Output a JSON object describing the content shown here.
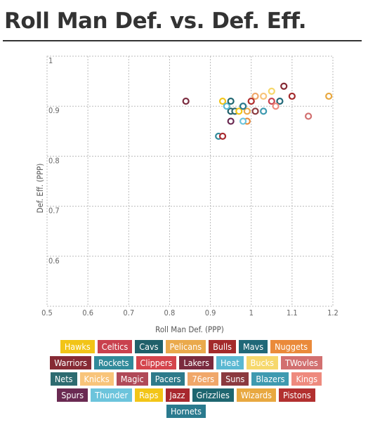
{
  "title": "Roll Man Def. vs. Def. Eff.",
  "chart_data": {
    "type": "scatter",
    "xlabel": "Roll Man Def. (PPP)",
    "ylabel": "Def. Eff. (PPP)",
    "xlim": [
      0.5,
      1.2
    ],
    "ylim": [
      0.5,
      1.0
    ],
    "xticks": [
      "0.5",
      "0.6",
      "0.7",
      "0.8",
      "0.9",
      "1",
      "1.1",
      "1.2"
    ],
    "yticks": [
      "0.6",
      "0.7",
      "0.8",
      "0.9",
      "1"
    ],
    "grid": true,
    "legend_position": "bottom",
    "series": [
      {
        "name": "Hawks",
        "color": "#f2c417",
        "x": 0.93,
        "y": 0.91
      },
      {
        "name": "Celtics",
        "color": "#c9414e",
        "x": 1.05,
        "y": 0.91
      },
      {
        "name": "Cavs",
        "color": "#20606a",
        "x": 0.95,
        "y": 0.89
      },
      {
        "name": "Pelicans",
        "color": "#eaa94c",
        "x": 0.99,
        "y": 0.89
      },
      {
        "name": "Bulls",
        "color": "#a32a2b",
        "x": 1.1,
        "y": 0.92
      },
      {
        "name": "Mavs",
        "color": "#206878",
        "x": 1.07,
        "y": 0.91
      },
      {
        "name": "Nuggets",
        "color": "#ea8a3a",
        "x": 0.99,
        "y": 0.87
      },
      {
        "name": "Warriors",
        "color": "#862a34",
        "x": 1.08,
        "y": 0.94
      },
      {
        "name": "Rockets",
        "color": "#318a9a",
        "x": 0.92,
        "y": 0.84
      },
      {
        "name": "Clippers",
        "color": "#d4444c",
        "x": 0.96,
        "y": 0.89
      },
      {
        "name": "Lakers",
        "color": "#7a2a3e",
        "x": 0.84,
        "y": 0.91
      },
      {
        "name": "Heat",
        "color": "#5ab8d2",
        "x": 0.94,
        "y": 0.9
      },
      {
        "name": "Bucks",
        "color": "#f6d86c",
        "x": 1.05,
        "y": 0.93
      },
      {
        "name": "TWovles",
        "color": "#d27070",
        "x": 1.14,
        "y": 0.88
      },
      {
        "name": "Nets",
        "color": "#2e6b70",
        "x": 0.96,
        "y": 0.89
      },
      {
        "name": "Knicks",
        "color": "#f8c47a",
        "x": 1.03,
        "y": 0.92
      },
      {
        "name": "Magic",
        "color": "#b04a58",
        "x": 1.0,
        "y": 0.91
      },
      {
        "name": "Pacers",
        "color": "#2e7a8a",
        "x": 0.98,
        "y": 0.9
      },
      {
        "name": "76ers",
        "color": "#f0a76a",
        "x": 1.01,
        "y": 0.92
      },
      {
        "name": "Suns",
        "color": "#8b3a3f",
        "x": 1.01,
        "y": 0.89
      },
      {
        "name": "Blazers",
        "color": "#3e9ab0",
        "x": 1.03,
        "y": 0.89
      },
      {
        "name": "Kings",
        "color": "#ee8a7e",
        "x": 1.06,
        "y": 0.9
      },
      {
        "name": "Spurs",
        "color": "#6a2a52",
        "x": 0.95,
        "y": 0.87
      },
      {
        "name": "Thunder",
        "color": "#6cc4dc",
        "x": 0.98,
        "y": 0.87
      },
      {
        "name": "Raps",
        "color": "#f2c517",
        "x": 0.97,
        "y": 0.89
      },
      {
        "name": "Jazz",
        "color": "#a8282e",
        "x": 0.93,
        "y": 0.84
      },
      {
        "name": "Grizzlies",
        "color": "#1e6670",
        "x": 0.95,
        "y": 0.91
      },
      {
        "name": "Wizards",
        "color": "#e8a840",
        "x": 1.19,
        "y": 0.92
      },
      {
        "name": "Pistons",
        "color": "#b2302f",
        "x": 1.0,
        "y": 0.91
      },
      {
        "name": "Hornets",
        "color": "#2a7a8e",
        "x": 0.98,
        "y": 0.9
      }
    ]
  }
}
